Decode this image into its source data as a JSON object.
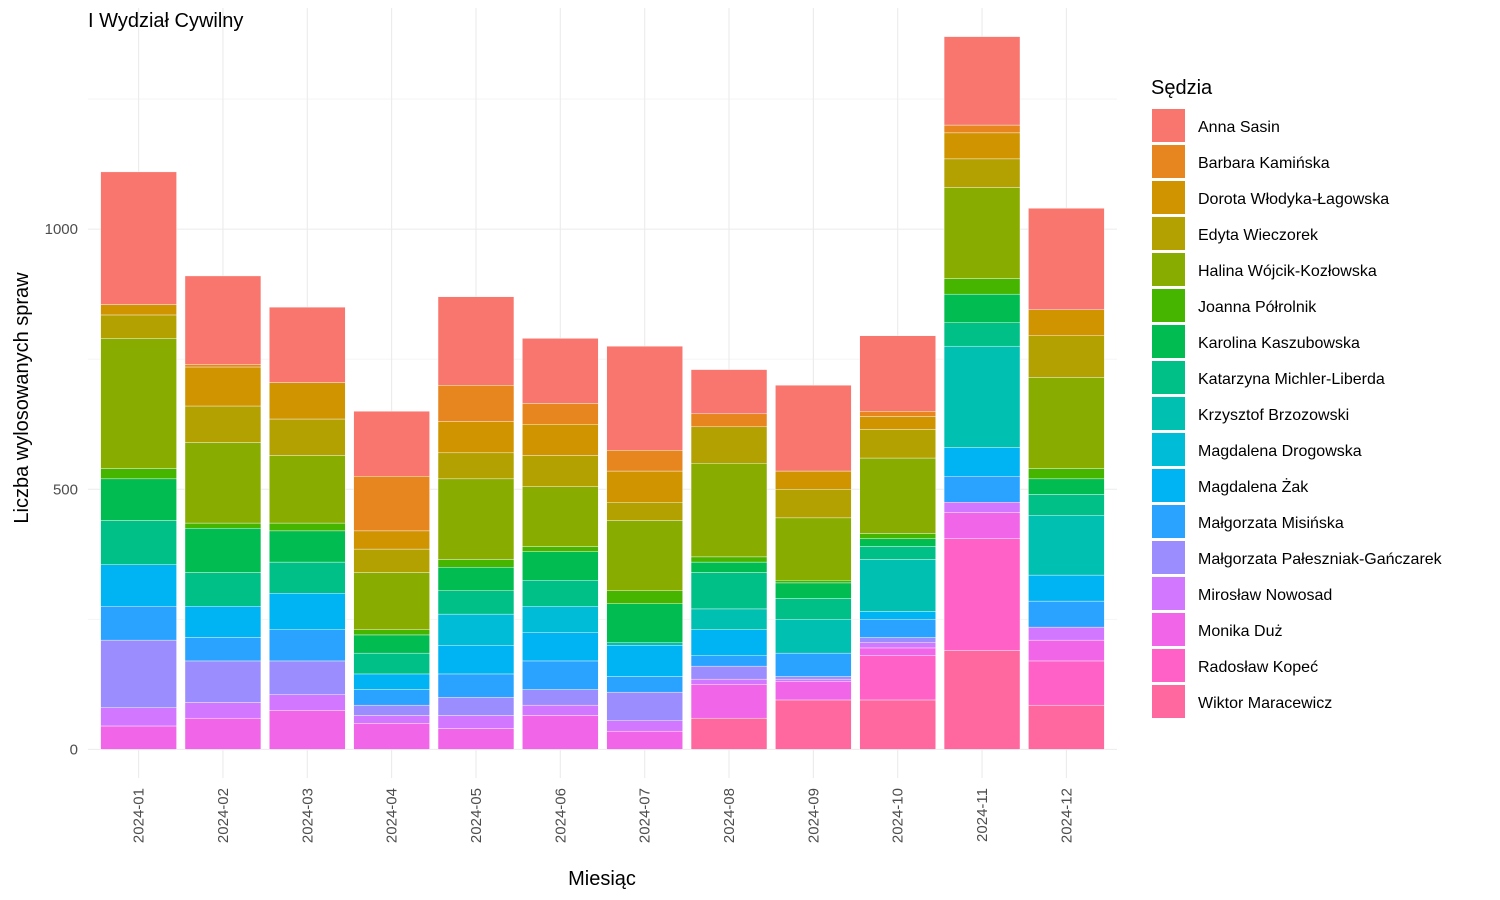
{
  "chart_data": {
    "type": "bar",
    "stacked": true,
    "title": "I Wydział Cywilny",
    "xlabel": "Miesiąc",
    "ylabel": "Liczba wylosowanych spraw",
    "ylim": [
      -55,
      1425
    ],
    "yticks": [
      0,
      500,
      1000
    ],
    "grid": true,
    "legend_title": "Sędzia",
    "legend_position": "right",
    "categories": [
      "2024-01",
      "2024-02",
      "2024-03",
      "2024-04",
      "2024-05",
      "2024-06",
      "2024-07",
      "2024-08",
      "2024-09",
      "2024-10",
      "2024-11",
      "2024-12"
    ],
    "series": [
      {
        "name": "Anna Sasin",
        "color": "#F8766D",
        "values": [
          255,
          170,
          145,
          125,
          170,
          125,
          200,
          85,
          165,
          145,
          170,
          195
        ]
      },
      {
        "name": "Barbara Kamińska",
        "color": "#E7851E",
        "values": [
          0,
          5,
          0,
          105,
          70,
          40,
          40,
          25,
          0,
          10,
          15,
          0
        ]
      },
      {
        "name": "Dorota Włodyka-Łagowska",
        "color": "#D09400",
        "values": [
          20,
          75,
          70,
          35,
          60,
          60,
          60,
          0,
          35,
          25,
          50,
          50
        ]
      },
      {
        "name": "Edyta Wieczorek",
        "color": "#B2A100",
        "values": [
          45,
          70,
          70,
          45,
          50,
          60,
          35,
          70,
          55,
          55,
          55,
          80
        ]
      },
      {
        "name": "Halina Wójcik-Kozłowska",
        "color": "#89AC00",
        "values": [
          250,
          155,
          130,
          110,
          155,
          115,
          135,
          180,
          120,
          145,
          175,
          175
        ]
      },
      {
        "name": "Joanna Półrolnik",
        "color": "#45B500",
        "values": [
          20,
          10,
          15,
          10,
          15,
          10,
          25,
          10,
          5,
          10,
          30,
          20
        ]
      },
      {
        "name": "Karolina Kaszubowska",
        "color": "#00BC51",
        "values": [
          80,
          85,
          60,
          35,
          45,
          55,
          75,
          20,
          30,
          15,
          55,
          30
        ]
      },
      {
        "name": "Katarzyna Michler-Liberda",
        "color": "#00C087",
        "values": [
          85,
          65,
          60,
          40,
          45,
          50,
          0,
          70,
          40,
          25,
          45,
          40
        ]
      },
      {
        "name": "Krzysztof Brzozowski",
        "color": "#00C0B2",
        "values": [
          0,
          0,
          0,
          0,
          0,
          0,
          5,
          40,
          65,
          100,
          195,
          115
        ]
      },
      {
        "name": "Magdalena Drogowska",
        "color": "#00BCD6",
        "values": [
          0,
          0,
          0,
          0,
          60,
          50,
          0,
          0,
          0,
          0,
          0,
          0
        ]
      },
      {
        "name": "Magdalena Żak",
        "color": "#00B3F2",
        "values": [
          80,
          60,
          70,
          30,
          55,
          55,
          60,
          50,
          0,
          15,
          55,
          50
        ]
      },
      {
        "name": "Małgorzata Misińska",
        "color": "#29A3FF",
        "values": [
          65,
          45,
          60,
          30,
          45,
          55,
          30,
          20,
          45,
          35,
          50,
          50
        ]
      },
      {
        "name": "Małgorzata Pałeszniak-Gańczarek",
        "color": "#9C8DFF",
        "values": [
          130,
          80,
          65,
          20,
          35,
          30,
          55,
          25,
          5,
          10,
          0,
          0
        ]
      },
      {
        "name": "Mirosław Nowosad",
        "color": "#D277FF",
        "values": [
          35,
          30,
          30,
          15,
          25,
          20,
          20,
          10,
          5,
          10,
          20,
          25
        ]
      },
      {
        "name": "Monika Duż",
        "color": "#F166E8",
        "values": [
          45,
          60,
          75,
          50,
          40,
          65,
          35,
          65,
          35,
          15,
          50,
          40
        ]
      },
      {
        "name": "Radosław Kopeć",
        "color": "#FF61C7",
        "values": [
          0,
          0,
          0,
          0,
          0,
          0,
          0,
          0,
          0,
          85,
          215,
          85
        ]
      },
      {
        "name": "Wiktor Maracewicz",
        "color": "#FF689E",
        "values": [
          0,
          0,
          0,
          0,
          0,
          0,
          0,
          60,
          95,
          95,
          190,
          85
        ]
      }
    ]
  }
}
